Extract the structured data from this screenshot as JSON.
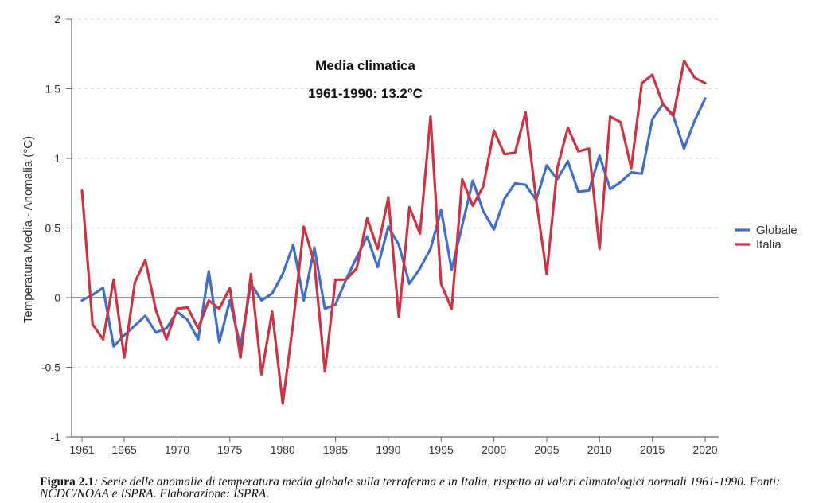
{
  "chart_data": {
    "type": "line",
    "ylabel": "Temperatura Media - Anomalia (°C)",
    "xlabel": "",
    "ylim": [
      -1,
      2
    ],
    "xlim": [
      1961,
      2020
    ],
    "yticks": [
      -1,
      -0.5,
      0,
      0.5,
      1,
      1.5,
      2
    ],
    "ytick_labels": [
      "-1",
      "-0.5",
      "0",
      "0.5",
      "1",
      "1.5",
      "2"
    ],
    "xticks": [
      1961,
      1965,
      1970,
      1975,
      1980,
      1985,
      1990,
      1995,
      2000,
      2005,
      2010,
      2015,
      2020
    ],
    "grid": "horizontal dashed",
    "legend_position": "right",
    "annotation": [
      "Media climatica",
      "1961-1990: 13.2°C"
    ],
    "x": [
      1961,
      1962,
      1963,
      1964,
      1965,
      1966,
      1967,
      1968,
      1969,
      1970,
      1971,
      1972,
      1973,
      1974,
      1975,
      1976,
      1977,
      1978,
      1979,
      1980,
      1981,
      1982,
      1983,
      1984,
      1985,
      1986,
      1987,
      1988,
      1989,
      1990,
      1991,
      1992,
      1993,
      1994,
      1995,
      1996,
      1997,
      1998,
      1999,
      2000,
      2001,
      2002,
      2003,
      2004,
      2005,
      2006,
      2007,
      2008,
      2009,
      2010,
      2011,
      2012,
      2013,
      2014,
      2015,
      2016,
      2017,
      2018,
      2019,
      2020
    ],
    "series": [
      {
        "name": "Globale",
        "color": "#3f6fca",
        "values": [
          -0.02,
          0.02,
          0.07,
          -0.35,
          -0.27,
          -0.2,
          -0.13,
          -0.25,
          -0.22,
          -0.1,
          -0.16,
          -0.3,
          0.19,
          -0.32,
          -0.02,
          -0.35,
          0.1,
          -0.02,
          0.03,
          0.17,
          0.38,
          -0.02,
          0.36,
          -0.08,
          -0.05,
          0.13,
          0.29,
          0.44,
          0.22,
          0.51,
          0.38,
          0.1,
          0.21,
          0.35,
          0.63,
          0.2,
          0.52,
          0.84,
          0.62,
          0.49,
          0.71,
          0.82,
          0.81,
          0.7,
          0.95,
          0.85,
          0.98,
          0.76,
          0.77,
          1.02,
          0.78,
          0.83,
          0.9,
          0.89,
          1.28,
          1.39,
          1.3,
          1.07,
          1.27,
          1.43
        ]
      },
      {
        "name": "Italia",
        "color": "#cc3344",
        "values": [
          0.77,
          -0.19,
          -0.3,
          0.13,
          -0.43,
          0.11,
          0.27,
          -0.09,
          -0.3,
          -0.08,
          -0.07,
          -0.22,
          -0.02,
          -0.08,
          0.07,
          -0.43,
          0.17,
          -0.55,
          -0.1,
          -0.76,
          -0.18,
          0.51,
          0.25,
          -0.53,
          0.13,
          0.13,
          0.21,
          0.57,
          0.35,
          0.72,
          -0.14,
          0.65,
          0.46,
          1.3,
          0.1,
          -0.08,
          0.85,
          0.66,
          0.8,
          1.2,
          1.03,
          1.04,
          1.33,
          0.7,
          0.17,
          0.93,
          1.22,
          1.05,
          1.07,
          0.35,
          1.3,
          1.26,
          0.93,
          1.54,
          1.6,
          1.39,
          1.31,
          1.7,
          1.58,
          1.54
        ]
      }
    ]
  },
  "caption": {
    "label": "Figura 2.1",
    "text": ": Serie delle anomalie di temperatura media globale sulla terraferma e in Italia, rispetto ai valori climatologici normali 1961-1990. Fonti: NCDC/NOAA e ISPRA. Elaborazione: ISPRA."
  }
}
